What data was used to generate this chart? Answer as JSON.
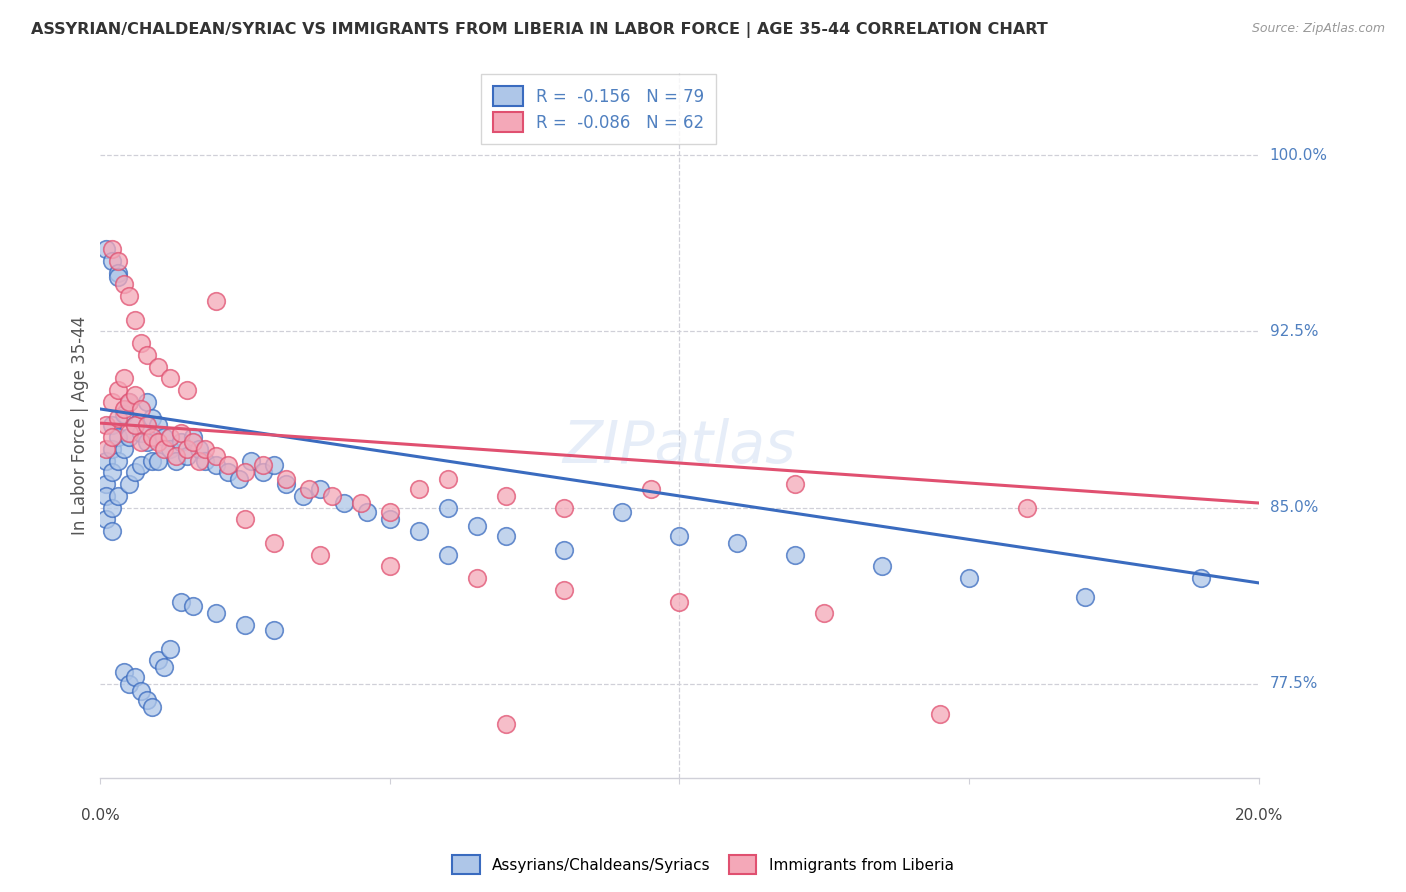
{
  "title": "ASSYRIAN/CHALDEAN/SYRIAC VS IMMIGRANTS FROM LIBERIA IN LABOR FORCE | AGE 35-44 CORRELATION CHART",
  "source": "Source: ZipAtlas.com",
  "ylabel": "In Labor Force | Age 35-44",
  "ytick_labels": [
    "77.5%",
    "85.0%",
    "92.5%",
    "100.0%"
  ],
  "ytick_values": [
    0.775,
    0.85,
    0.925,
    1.0
  ],
  "xlim": [
    0.0,
    0.2
  ],
  "ylim": [
    0.735,
    1.035
  ],
  "legend_label1": "R =  -0.156   N = 79",
  "legend_label2": "R =  -0.086   N = 62",
  "color_blue": "#aec6e8",
  "color_pink": "#f4a8b8",
  "line_color_blue": "#3a6bbf",
  "line_color_pink": "#e05070",
  "blue_line_x0": 0.0,
  "blue_line_x1": 0.2,
  "blue_line_y0": 0.892,
  "blue_line_y1": 0.818,
  "pink_line_x0": 0.0,
  "pink_line_x1": 0.2,
  "pink_line_y0": 0.886,
  "pink_line_y1": 0.852,
  "watermark": "ZIPatlas",
  "grid_color": "#d0d0d8",
  "axis_label_color": "#5080c0",
  "blue_x": [
    0.001,
    0.001,
    0.001,
    0.001,
    0.002,
    0.002,
    0.002,
    0.002,
    0.002,
    0.003,
    0.003,
    0.003,
    0.004,
    0.004,
    0.005,
    0.005,
    0.005,
    0.006,
    0.006,
    0.007,
    0.007,
    0.008,
    0.008,
    0.009,
    0.009,
    0.01,
    0.01,
    0.011,
    0.012,
    0.013,
    0.014,
    0.015,
    0.016,
    0.017,
    0.018,
    0.02,
    0.022,
    0.024,
    0.026,
    0.028,
    0.03,
    0.032,
    0.035,
    0.038,
    0.042,
    0.046,
    0.05,
    0.055,
    0.06,
    0.065,
    0.07,
    0.08,
    0.09,
    0.1,
    0.11,
    0.12,
    0.135,
    0.15,
    0.17,
    0.19,
    0.001,
    0.002,
    0.003,
    0.003,
    0.004,
    0.005,
    0.006,
    0.007,
    0.008,
    0.009,
    0.01,
    0.011,
    0.012,
    0.014,
    0.016,
    0.02,
    0.025,
    0.03,
    0.06
  ],
  "blue_y": [
    0.87,
    0.86,
    0.855,
    0.845,
    0.885,
    0.875,
    0.865,
    0.85,
    0.84,
    0.88,
    0.87,
    0.855,
    0.89,
    0.875,
    0.895,
    0.88,
    0.86,
    0.885,
    0.865,
    0.882,
    0.868,
    0.895,
    0.878,
    0.888,
    0.87,
    0.885,
    0.87,
    0.88,
    0.875,
    0.87,
    0.878,
    0.872,
    0.88,
    0.875,
    0.87,
    0.868,
    0.865,
    0.862,
    0.87,
    0.865,
    0.868,
    0.86,
    0.855,
    0.858,
    0.852,
    0.848,
    0.845,
    0.84,
    0.85,
    0.842,
    0.838,
    0.832,
    0.848,
    0.838,
    0.835,
    0.83,
    0.825,
    0.82,
    0.812,
    0.82,
    0.96,
    0.955,
    0.95,
    0.948,
    0.78,
    0.775,
    0.778,
    0.772,
    0.768,
    0.765,
    0.785,
    0.782,
    0.79,
    0.81,
    0.808,
    0.805,
    0.8,
    0.798,
    0.83
  ],
  "pink_x": [
    0.001,
    0.001,
    0.002,
    0.002,
    0.003,
    0.003,
    0.004,
    0.004,
    0.005,
    0.005,
    0.006,
    0.006,
    0.007,
    0.007,
    0.008,
    0.009,
    0.01,
    0.011,
    0.012,
    0.013,
    0.014,
    0.015,
    0.016,
    0.017,
    0.018,
    0.02,
    0.022,
    0.025,
    0.028,
    0.032,
    0.036,
    0.04,
    0.045,
    0.05,
    0.055,
    0.06,
    0.07,
    0.08,
    0.095,
    0.12,
    0.002,
    0.003,
    0.004,
    0.005,
    0.006,
    0.007,
    0.008,
    0.01,
    0.012,
    0.015,
    0.02,
    0.025,
    0.03,
    0.038,
    0.05,
    0.065,
    0.08,
    0.1,
    0.125,
    0.16,
    0.145,
    0.07
  ],
  "pink_y": [
    0.885,
    0.875,
    0.895,
    0.88,
    0.9,
    0.888,
    0.905,
    0.892,
    0.895,
    0.882,
    0.898,
    0.885,
    0.892,
    0.878,
    0.885,
    0.88,
    0.878,
    0.875,
    0.88,
    0.872,
    0.882,
    0.875,
    0.878,
    0.87,
    0.875,
    0.872,
    0.868,
    0.865,
    0.868,
    0.862,
    0.858,
    0.855,
    0.852,
    0.848,
    0.858,
    0.862,
    0.855,
    0.85,
    0.858,
    0.86,
    0.96,
    0.955,
    0.945,
    0.94,
    0.93,
    0.92,
    0.915,
    0.91,
    0.905,
    0.9,
    0.938,
    0.845,
    0.835,
    0.83,
    0.825,
    0.82,
    0.815,
    0.81,
    0.805,
    0.85,
    0.762,
    0.758
  ]
}
